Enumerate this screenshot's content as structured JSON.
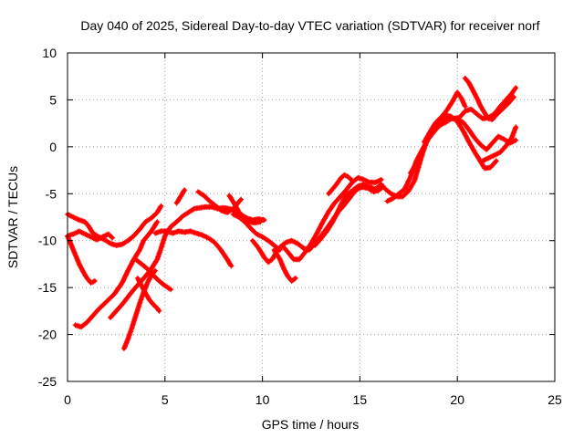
{
  "chart_data": {
    "type": "scatter",
    "title": "Day 040 of 2025, Sidereal Day-to-day VTEC variation (SDTVAR) for receiver norf",
    "xlabel": "GPS time / hours",
    "ylabel": "SDTVAR / TECUs",
    "xlim": [
      0,
      25
    ],
    "ylim": [
      -25,
      10
    ],
    "xticks": [
      0,
      5,
      10,
      15,
      20,
      25
    ],
    "yticks": [
      -25,
      -20,
      -15,
      -10,
      -5,
      0,
      5,
      10
    ],
    "grid": true,
    "marker": "plus",
    "colors": {
      "series": "#ff0000",
      "grid": "#a0a0a0",
      "frame": "#000000"
    },
    "series": [
      {
        "points": [
          [
            0.0,
            -7.2
          ],
          [
            0.3,
            -7.5
          ],
          [
            0.6,
            -7.8
          ],
          [
            0.9,
            -8.0
          ],
          [
            1.1,
            -8.5
          ],
          [
            1.3,
            -9.2
          ],
          [
            1.6,
            -9.6
          ],
          [
            1.9,
            -9.9
          ],
          [
            2.2,
            -10.3
          ],
          [
            2.5,
            -10.5
          ],
          [
            2.8,
            -10.4
          ],
          [
            3.1,
            -10.0
          ],
          [
            3.4,
            -9.5
          ],
          [
            3.7,
            -8.8
          ],
          [
            4.0,
            -8.0
          ],
          [
            4.3,
            -7.6
          ],
          [
            4.6,
            -7.0
          ],
          [
            4.8,
            -6.3
          ]
        ]
      },
      {
        "points": [
          [
            0.0,
            -9.5
          ],
          [
            0.2,
            -10.5
          ],
          [
            0.4,
            -11.5
          ],
          [
            0.6,
            -12.5
          ],
          [
            0.8,
            -13.3
          ],
          [
            1.0,
            -14.0
          ],
          [
            1.2,
            -14.5
          ],
          [
            1.4,
            -14.3
          ]
        ]
      },
      {
        "points": [
          [
            0.0,
            -9.5
          ],
          [
            0.3,
            -9.3
          ],
          [
            0.6,
            -9.0
          ],
          [
            0.9,
            -9.3
          ],
          [
            1.2,
            -9.6
          ],
          [
            1.5,
            -9.9
          ],
          [
            1.8,
            -9.6
          ],
          [
            2.1,
            -9.3
          ],
          [
            2.3,
            -9.7
          ]
        ]
      },
      {
        "points": [
          [
            0.4,
            -19.0
          ],
          [
            0.7,
            -19.2
          ],
          [
            1.0,
            -18.7
          ],
          [
            1.3,
            -18.0
          ],
          [
            1.6,
            -17.3
          ],
          [
            2.0,
            -16.5
          ],
          [
            2.4,
            -15.7
          ],
          [
            2.8,
            -14.5
          ],
          [
            3.1,
            -13.2
          ],
          [
            3.4,
            -12.0
          ],
          [
            3.7,
            -11.0
          ],
          [
            3.9,
            -10.0
          ],
          [
            4.1,
            -9.5
          ],
          [
            4.3,
            -9.0
          ],
          [
            4.6,
            -8.0
          ]
        ]
      },
      {
        "points": [
          [
            2.2,
            -18.2
          ],
          [
            2.5,
            -17.5
          ],
          [
            2.8,
            -16.8
          ],
          [
            3.1,
            -16.0
          ],
          [
            3.4,
            -15.2
          ],
          [
            3.7,
            -14.5
          ],
          [
            4.0,
            -13.8
          ],
          [
            4.3,
            -13.0
          ],
          [
            4.6,
            -12.0
          ],
          [
            4.8,
            -10.8
          ],
          [
            5.0,
            -9.5
          ],
          [
            5.3,
            -8.5
          ],
          [
            5.6,
            -8.0
          ],
          [
            5.9,
            -7.4
          ],
          [
            6.2,
            -7.0
          ],
          [
            6.5,
            -6.6
          ],
          [
            6.8,
            -6.5
          ],
          [
            7.1,
            -6.4
          ],
          [
            7.4,
            -6.4
          ],
          [
            7.7,
            -6.6
          ],
          [
            8.0,
            -6.5
          ],
          [
            8.3,
            -6.6
          ],
          [
            8.6,
            -6.8
          ],
          [
            8.9,
            -7.2
          ],
          [
            9.2,
            -7.6
          ],
          [
            9.5,
            -7.8
          ],
          [
            9.8,
            -7.7
          ],
          [
            10.1,
            -7.8
          ]
        ]
      },
      {
        "points": [
          [
            2.9,
            -21.5
          ],
          [
            3.1,
            -20.5
          ],
          [
            3.3,
            -19.3
          ],
          [
            3.5,
            -18.0
          ],
          [
            3.7,
            -16.7
          ],
          [
            3.9,
            -15.5
          ],
          [
            4.1,
            -14.5
          ],
          [
            4.3,
            -13.7
          ],
          [
            4.5,
            -13.2
          ]
        ]
      },
      {
        "points": [
          [
            3.6,
            -14.0
          ],
          [
            3.8,
            -14.8
          ],
          [
            4.0,
            -15.6
          ],
          [
            4.2,
            -16.3
          ],
          [
            4.4,
            -16.8
          ],
          [
            4.6,
            -17.2
          ],
          [
            4.7,
            -17.5
          ]
        ]
      },
      {
        "points": [
          [
            3.5,
            -12.0
          ],
          [
            3.8,
            -12.5
          ],
          [
            4.1,
            -13.0
          ],
          [
            4.4,
            -13.7
          ],
          [
            4.7,
            -14.3
          ],
          [
            5.0,
            -14.8
          ],
          [
            5.3,
            -15.2
          ]
        ]
      },
      {
        "points": [
          [
            4.5,
            -9.2
          ],
          [
            4.8,
            -9.0
          ],
          [
            5.1,
            -9.0
          ],
          [
            5.4,
            -9.2
          ],
          [
            5.7,
            -9.0
          ],
          [
            6.0,
            -9.1
          ],
          [
            6.3,
            -9.0
          ],
          [
            6.6,
            -9.2
          ],
          [
            6.9,
            -9.4
          ],
          [
            7.2,
            -9.7
          ],
          [
            7.5,
            -10.1
          ],
          [
            7.8,
            -10.8
          ],
          [
            8.1,
            -11.7
          ],
          [
            8.4,
            -12.7
          ]
        ]
      },
      {
        "points": [
          [
            5.6,
            -6.0
          ],
          [
            5.8,
            -5.3
          ],
          [
            6.0,
            -4.6
          ]
        ]
      },
      {
        "points": [
          [
            6.7,
            -4.8
          ],
          [
            7.0,
            -5.2
          ],
          [
            7.3,
            -5.8
          ],
          [
            7.6,
            -6.3
          ],
          [
            7.9,
            -6.8
          ],
          [
            8.2,
            -7.0
          ],
          [
            8.5,
            -6.6
          ],
          [
            8.7,
            -6.1
          ],
          [
            8.9,
            -5.6
          ]
        ]
      },
      {
        "points": [
          [
            8.5,
            -7.2
          ],
          [
            8.8,
            -7.5
          ],
          [
            9.1,
            -8.0
          ],
          [
            9.4,
            -8.7
          ],
          [
            9.7,
            -9.3
          ],
          [
            10.0,
            -9.6
          ],
          [
            10.3,
            -10.0
          ],
          [
            10.6,
            -10.5
          ],
          [
            10.9,
            -11.0
          ]
        ]
      },
      {
        "points": [
          [
            8.3,
            -5.2
          ],
          [
            8.6,
            -6.2
          ],
          [
            8.8,
            -7.0
          ],
          [
            9.0,
            -7.5
          ],
          [
            9.3,
            -8.0
          ],
          [
            9.6,
            -8.1
          ],
          [
            9.9,
            -8.0
          ]
        ]
      },
      {
        "points": [
          [
            9.5,
            -10.0
          ],
          [
            9.8,
            -10.8
          ],
          [
            10.1,
            -11.8
          ],
          [
            10.3,
            -12.3
          ],
          [
            10.5,
            -12.0
          ],
          [
            10.7,
            -11.3
          ],
          [
            10.9,
            -10.7
          ],
          [
            11.2,
            -10.2
          ],
          [
            11.5,
            -10.0
          ],
          [
            11.8,
            -10.3
          ],
          [
            12.1,
            -10.8
          ],
          [
            12.4,
            -11.0
          ],
          [
            12.7,
            -10.3
          ],
          [
            13.0,
            -9.5
          ],
          [
            13.3,
            -8.7
          ],
          [
            13.6,
            -7.8
          ],
          [
            13.9,
            -6.9
          ],
          [
            14.2,
            -6.2
          ],
          [
            14.5,
            -5.4
          ],
          [
            14.8,
            -4.6
          ],
          [
            15.1,
            -4.3
          ],
          [
            15.4,
            -4.4
          ],
          [
            15.7,
            -4.8
          ],
          [
            16.0,
            -4.6
          ],
          [
            16.2,
            -4.2
          ]
        ]
      },
      {
        "points": [
          [
            10.6,
            -11.0
          ],
          [
            10.9,
            -12.0
          ],
          [
            11.1,
            -13.0
          ],
          [
            11.3,
            -13.8
          ],
          [
            11.5,
            -14.3
          ],
          [
            11.7,
            -14.0
          ]
        ]
      },
      {
        "points": [
          [
            11.0,
            -10.5
          ],
          [
            11.3,
            -11.2
          ],
          [
            11.6,
            -12.0
          ],
          [
            11.9,
            -12.0
          ],
          [
            12.2,
            -11.2
          ],
          [
            12.5,
            -10.3
          ],
          [
            12.8,
            -9.2
          ],
          [
            13.1,
            -8.0
          ],
          [
            13.4,
            -6.9
          ],
          [
            13.7,
            -6.0
          ],
          [
            14.0,
            -5.3
          ],
          [
            14.3,
            -4.6
          ],
          [
            14.6,
            -3.8
          ],
          [
            14.9,
            -3.3
          ],
          [
            15.2,
            -3.5
          ],
          [
            15.5,
            -3.8
          ],
          [
            15.8,
            -3.8
          ],
          [
            16.1,
            -3.5
          ]
        ]
      },
      {
        "points": [
          [
            12.7,
            -10.5
          ],
          [
            13.0,
            -9.8
          ],
          [
            13.3,
            -9.0
          ],
          [
            13.6,
            -8.0
          ],
          [
            13.8,
            -7.2
          ],
          [
            14.0,
            -6.3
          ],
          [
            14.2,
            -5.5
          ],
          [
            14.4,
            -5.0
          ],
          [
            14.6,
            -4.7
          ],
          [
            14.9,
            -4.2
          ],
          [
            15.2,
            -4.0
          ],
          [
            15.5,
            -4.3
          ],
          [
            15.8,
            -4.5
          ],
          [
            16.1,
            -4.0
          ]
        ]
      },
      {
        "points": [
          [
            13.4,
            -5.0
          ],
          [
            13.6,
            -4.5
          ],
          [
            13.8,
            -4.0
          ],
          [
            14.0,
            -3.4
          ],
          [
            14.2,
            -3.0
          ],
          [
            14.4,
            -3.2
          ],
          [
            14.6,
            -3.6
          ]
        ]
      },
      {
        "points": [
          [
            16.3,
            -4.5
          ],
          [
            16.6,
            -5.0
          ],
          [
            16.9,
            -5.3
          ],
          [
            17.2,
            -5.3
          ],
          [
            17.5,
            -4.7
          ],
          [
            17.8,
            -3.6
          ],
          [
            18.0,
            -2.2
          ],
          [
            18.2,
            -0.8
          ],
          [
            18.4,
            0.4
          ],
          [
            18.6,
            1.4
          ],
          [
            18.9,
            2.2
          ],
          [
            19.2,
            2.6
          ],
          [
            19.5,
            3.0
          ],
          [
            19.8,
            3.0
          ],
          [
            20.1,
            3.1
          ],
          [
            20.4,
            3.8
          ],
          [
            20.7,
            4.0
          ],
          [
            21.0,
            3.5
          ],
          [
            21.3,
            3.0
          ],
          [
            21.6,
            3.1
          ],
          [
            21.9,
            3.5
          ],
          [
            22.2,
            4.3
          ],
          [
            22.5,
            5.0
          ],
          [
            22.8,
            5.7
          ],
          [
            23.0,
            6.3
          ]
        ]
      },
      {
        "points": [
          [
            16.4,
            -5.8
          ],
          [
            16.7,
            -5.5
          ],
          [
            17.0,
            -5.0
          ],
          [
            17.3,
            -4.5
          ],
          [
            17.6,
            -3.2
          ],
          [
            17.9,
            -1.5
          ],
          [
            18.2,
            -0.3
          ],
          [
            18.5,
            0.8
          ],
          [
            18.8,
            1.6
          ],
          [
            19.1,
            2.3
          ],
          [
            19.4,
            2.6
          ],
          [
            19.7,
            3.0
          ],
          [
            20.0,
            3.0
          ],
          [
            20.3,
            2.6
          ],
          [
            20.6,
            1.8
          ],
          [
            20.9,
            0.9
          ],
          [
            21.2,
            0.2
          ],
          [
            21.5,
            -0.3
          ],
          [
            21.8,
            0.4
          ],
          [
            22.1,
            1.1
          ],
          [
            22.4,
            0.8
          ],
          [
            22.7,
            0.4
          ],
          [
            23.0,
            0.7
          ]
        ]
      },
      {
        "points": [
          [
            17.6,
            -2.8
          ],
          [
            17.9,
            -1.8
          ],
          [
            18.2,
            -0.5
          ],
          [
            18.5,
            0.9
          ],
          [
            18.8,
            2.0
          ],
          [
            19.1,
            2.8
          ],
          [
            19.4,
            3.4
          ],
          [
            19.7,
            3.2
          ],
          [
            20.0,
            2.7
          ],
          [
            20.3,
            1.7
          ],
          [
            20.6,
            0.5
          ],
          [
            20.9,
            -0.6
          ],
          [
            21.2,
            -1.6
          ],
          [
            21.4,
            -2.3
          ],
          [
            21.7,
            -2.2
          ],
          [
            22.0,
            -1.5
          ]
        ]
      },
      {
        "points": [
          [
            18.3,
            0.5
          ],
          [
            18.6,
            1.6
          ],
          [
            18.9,
            2.6
          ],
          [
            19.2,
            3.2
          ],
          [
            19.5,
            4.0
          ],
          [
            19.8,
            5.0
          ],
          [
            20.0,
            5.8
          ],
          [
            20.2,
            5.2
          ],
          [
            20.4,
            4.3
          ]
        ]
      },
      {
        "points": [
          [
            20.4,
            7.3
          ],
          [
            20.6,
            6.8
          ],
          [
            20.8,
            6.0
          ],
          [
            21.0,
            5.2
          ],
          [
            21.2,
            4.3
          ],
          [
            21.4,
            3.6
          ],
          [
            21.6,
            3.0
          ],
          [
            21.8,
            2.9
          ],
          [
            22.0,
            3.4
          ],
          [
            22.3,
            4.0
          ],
          [
            22.6,
            4.6
          ],
          [
            22.9,
            5.3
          ]
        ]
      },
      {
        "points": [
          [
            21.3,
            -1.5
          ],
          [
            21.6,
            -1.2
          ],
          [
            21.9,
            -0.9
          ],
          [
            22.2,
            -0.6
          ],
          [
            22.5,
            0.1
          ],
          [
            22.8,
            1.0
          ],
          [
            23.0,
            2.1
          ]
        ]
      }
    ]
  }
}
